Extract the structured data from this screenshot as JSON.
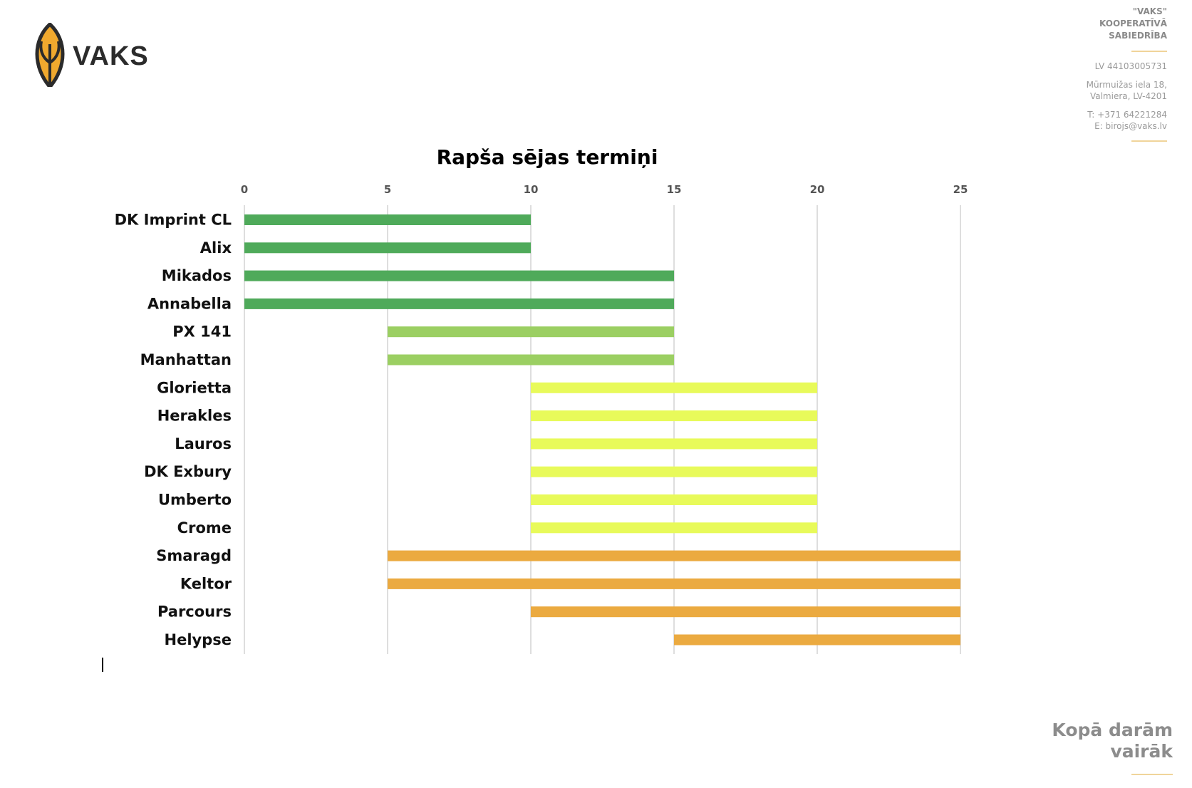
{
  "logo": {
    "text": "VAKS",
    "colors": {
      "leaf": "#F0A92E",
      "outline": "#2B2B2B"
    }
  },
  "company": {
    "name_lines": [
      "\"VAKS\"",
      "KOOPERATĪVĀ",
      "SABIEDRĪBA"
    ],
    "reg_no": "LV 44103005731",
    "address_lines": [
      "Mūrmuižas iela 18,",
      "Valmiera, LV-4201"
    ],
    "contact_lines": [
      "T: +371 64221284",
      "E: birojs@vaks.lv"
    ]
  },
  "slogan_lines": [
    "Kopā darām",
    "vairāk"
  ],
  "chart_data": {
    "type": "bar",
    "orientation": "horizontal",
    "title": "Rapša sējas termiņi",
    "xlabel": "",
    "ylabel": "",
    "xlim": [
      0,
      25
    ],
    "xticks": [
      0,
      5,
      10,
      15,
      20,
      25
    ],
    "x_axis_position": "top",
    "grid": true,
    "legend": "none",
    "categories": [
      "DK Imprint CL",
      "Alix",
      "Mikados",
      "Annabella",
      "PX 141",
      "Manhattan",
      "Glorietta",
      "Herakles",
      "Lauros",
      "DK Exbury",
      "Umberto",
      "Crome",
      "Smaragd",
      "Keltor",
      "Parcours",
      "Helypse"
    ],
    "starts": [
      0,
      0,
      0,
      0,
      5,
      5,
      10,
      10,
      10,
      10,
      10,
      10,
      5,
      5,
      10,
      15
    ],
    "ends": [
      10,
      10,
      15,
      15,
      15,
      15,
      20,
      20,
      20,
      20,
      20,
      20,
      25,
      25,
      25,
      25
    ],
    "colors": [
      "#4FAA5A",
      "#4FAA5A",
      "#4FAA5A",
      "#4FAA5A",
      "#9BCF62",
      "#9BCF62",
      "#E8FA5A",
      "#E8FA5A",
      "#E8FA5A",
      "#E8FA5A",
      "#E8FA5A",
      "#E8FA5A",
      "#EBAA40",
      "#EBAA40",
      "#EBAA40",
      "#EBAA40"
    ]
  }
}
